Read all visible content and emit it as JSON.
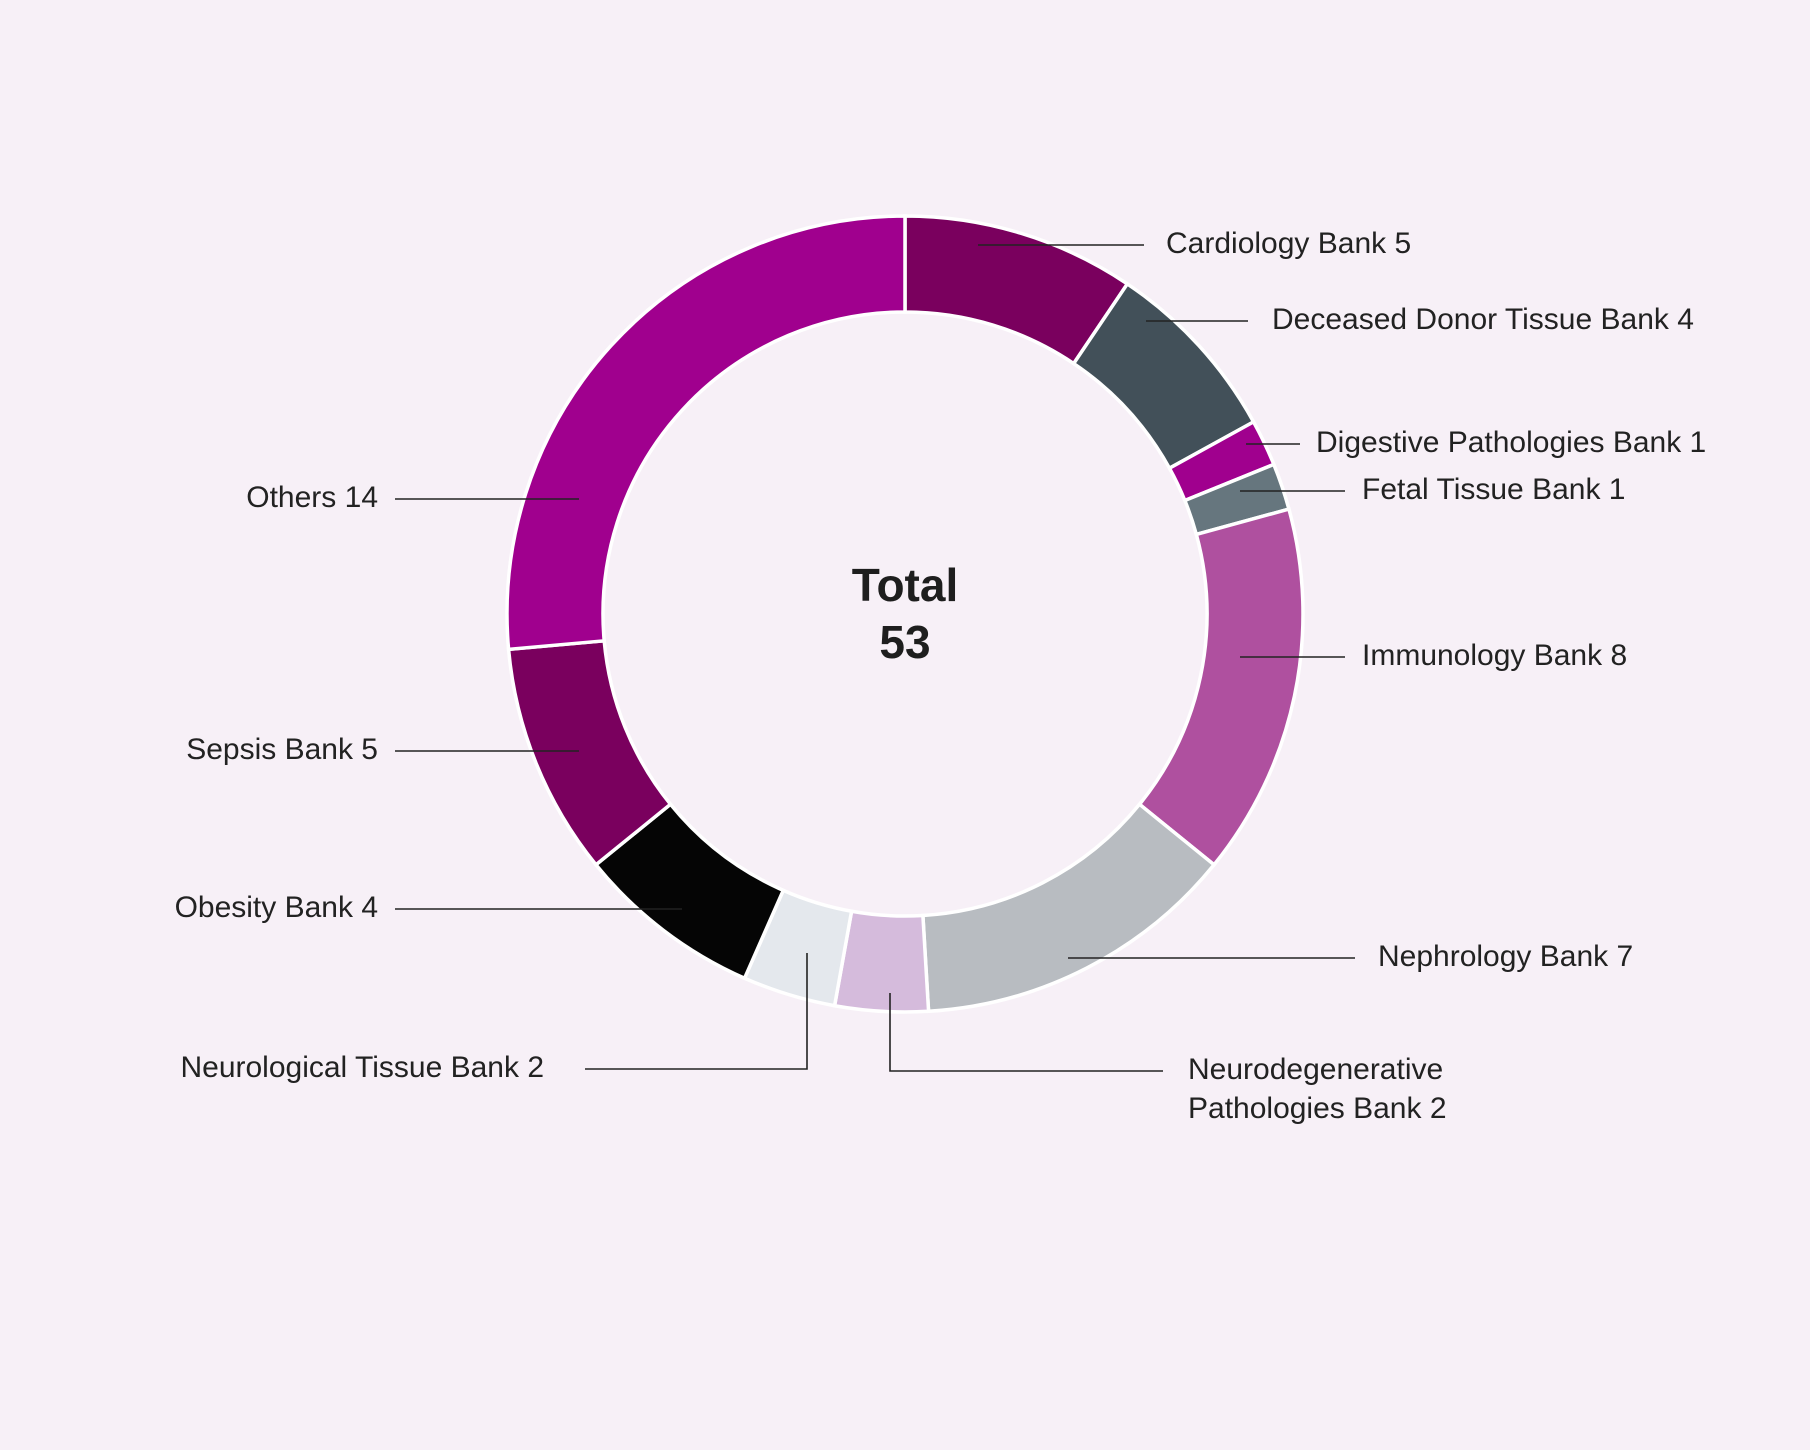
{
  "chart_data": {
    "type": "pie",
    "variant": "donut",
    "title": "",
    "center_label": "Total",
    "center_value": "53",
    "slices": [
      {
        "label": "Cardiology Bank",
        "value": 5,
        "color": "#7a005e"
      },
      {
        "label": "Deceased Donor Tissue Bank",
        "value": 4,
        "color": "#425059"
      },
      {
        "label": "Digestive Pathologies Bank",
        "value": 1,
        "color": "#a0008e"
      },
      {
        "label": "Fetal Tissue Bank",
        "value": 1,
        "color": "#66767e"
      },
      {
        "label": "Immunology Bank",
        "value": 8,
        "color": "#af509f"
      },
      {
        "label": "Nephrology Bank",
        "value": 7,
        "color": "#b8bcc1"
      },
      {
        "label": "Neurodegenerative Pathologies Bank",
        "label_lines": [
          "Neurodegenerative",
          "Pathologies Bank 2"
        ],
        "value": 2,
        "color": "#d5bbdc"
      },
      {
        "label": "Neurological Tissue Bank",
        "value": 2,
        "color": "#e4e8ed"
      },
      {
        "label": "Obesity Bank",
        "value": 4,
        "color": "#050505"
      },
      {
        "label": "Sepsis Bank",
        "value": 5,
        "color": "#7a005e"
      },
      {
        "label": "Others",
        "value": 14,
        "color": "#a0008e"
      }
    ],
    "legend": "none"
  }
}
